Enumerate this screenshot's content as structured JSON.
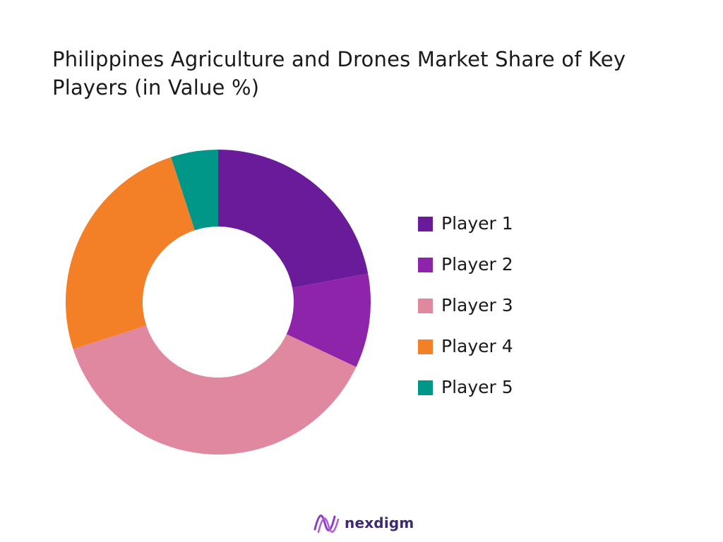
{
  "chart_data": {
    "type": "pie",
    "title": "Philippines Agriculture and Drones Market Share of Key Players (in Value %)",
    "donut": true,
    "categories": [
      "Player 1",
      "Player 2",
      "Player 3",
      "Player 4",
      "Player 5"
    ],
    "values": [
      22,
      10,
      38,
      25,
      5
    ],
    "colors": [
      "#6a1b9a",
      "#8e24aa",
      "#e088a0",
      "#f37f26",
      "#009688"
    ],
    "legend_position": "right"
  },
  "logo": {
    "text": "nexdigm",
    "icon": "nexdigm-wave-icon"
  }
}
